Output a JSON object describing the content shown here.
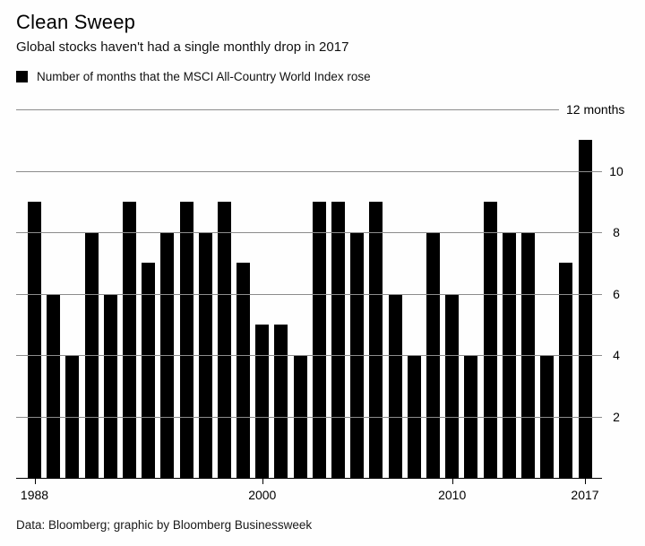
{
  "header": {
    "title": "Clean Sweep",
    "subtitle": "Global stocks haven't had a single monthly drop in 2017",
    "legend_label": "Number of months that the MSCI All-Country World Index rose"
  },
  "chart_data": {
    "type": "bar",
    "title": "Clean Sweep",
    "subtitle": "Global stocks haven't had a single monthly drop in 2017",
    "legend": [
      "Number of months that the MSCI All-Country World Index rose"
    ],
    "categories": [
      1988,
      1989,
      1990,
      1991,
      1992,
      1993,
      1994,
      1995,
      1996,
      1997,
      1998,
      1999,
      2000,
      2001,
      2002,
      2003,
      2004,
      2005,
      2006,
      2007,
      2008,
      2009,
      2010,
      2011,
      2012,
      2013,
      2014,
      2015,
      2016,
      2017
    ],
    "values": [
      9,
      6,
      4,
      8,
      6,
      9,
      7,
      8,
      9,
      8,
      9,
      7,
      5,
      5,
      4,
      9,
      9,
      8,
      9,
      6,
      4,
      8,
      6,
      4,
      9,
      8,
      8,
      4,
      7,
      11
    ],
    "ylabel": "months",
    "xlabel": "",
    "ylim": [
      0,
      12
    ],
    "ytick_values": [
      2,
      4,
      6,
      8,
      10,
      12
    ],
    "ytick_labels": [
      "2",
      "4",
      "6",
      "8",
      "10",
      "12 months"
    ],
    "xtick_years": [
      1988,
      2000,
      2010,
      2017
    ],
    "xtick_labels": [
      "1988",
      "2000",
      "2010",
      "2017"
    ],
    "grid": true,
    "legend_position": "top-left",
    "ytick_side": "right",
    "bar_color": "#000000",
    "gridline_color": "#8c8c8c",
    "axis_color": "#000000"
  },
  "footer": {
    "credit": "Data: Bloomberg; graphic by Bloomberg Businessweek"
  }
}
